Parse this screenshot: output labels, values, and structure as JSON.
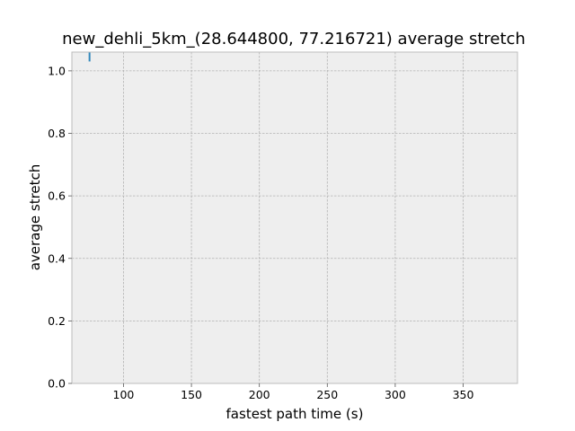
{
  "chart_data": {
    "type": "line",
    "title": "new_dehli_5km_(28.644800, 77.216721) average stretch",
    "xlabel": "fastest path time (s)",
    "ylabel": "average stretch",
    "xlim": [
      62,
      390
    ],
    "ylim": [
      0.0,
      1.06
    ],
    "xticks": [
      100,
      150,
      200,
      250,
      300,
      350
    ],
    "yticks": [
      0.0,
      0.2,
      0.4,
      0.6,
      0.8,
      1.0
    ],
    "xtick_labels": [
      "100",
      "150",
      "200",
      "250",
      "300",
      "350"
    ],
    "ytick_labels": [
      "0.0",
      "0.2",
      "0.4",
      "0.6",
      "0.8",
      "1.0"
    ],
    "grid": true,
    "series": [
      {
        "color": "#348abd",
        "x": [
          75,
          75
        ],
        "y": [
          1.03,
          1.06
        ]
      }
    ]
  }
}
